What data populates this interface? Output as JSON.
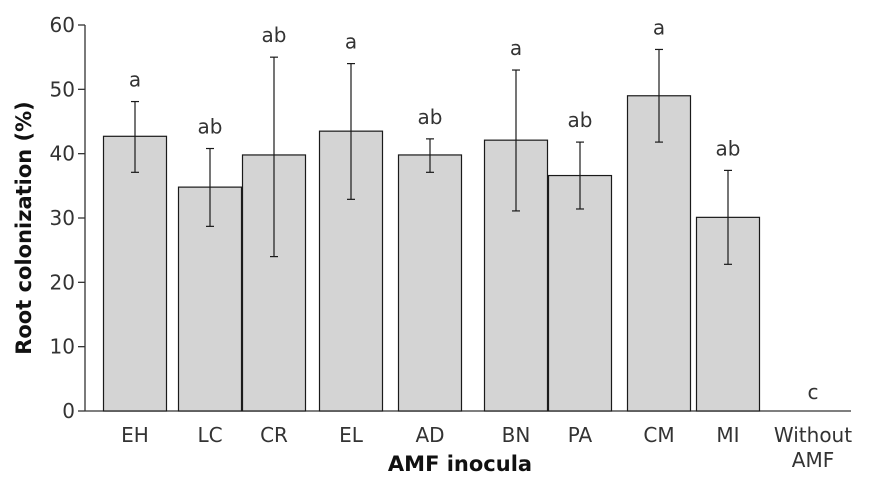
{
  "chart_data": {
    "type": "bar",
    "xlabel": "AMF inocula",
    "ylabel": "Root colonization (%)",
    "ylim": [
      0,
      60
    ],
    "yticks": [
      0,
      10,
      20,
      30,
      40,
      50,
      60
    ],
    "grid": false,
    "categories": [
      [
        "EH"
      ],
      [
        "LC"
      ],
      [
        "CR"
      ],
      [
        "EL"
      ],
      [
        "AD"
      ],
      [
        "BN"
      ],
      [
        "PA"
      ],
      [
        "CM"
      ],
      [
        "MI"
      ],
      [
        "Without",
        "AMF"
      ]
    ],
    "values": [
      42.7,
      34.8,
      39.8,
      43.5,
      39.8,
      42.1,
      36.6,
      49.0,
      30.1,
      0
    ],
    "error_low": [
      37.1,
      28.7,
      24.0,
      32.9,
      37.1,
      31.1,
      31.4,
      41.8,
      22.8,
      null
    ],
    "error_high": [
      48.1,
      40.8,
      55.0,
      54.0,
      42.3,
      53.0,
      41.8,
      56.2,
      37.4,
      null
    ],
    "significance": [
      "a",
      "ab",
      "ab",
      "a",
      "ab",
      "a",
      "ab",
      "a",
      "ab",
      "c"
    ]
  }
}
